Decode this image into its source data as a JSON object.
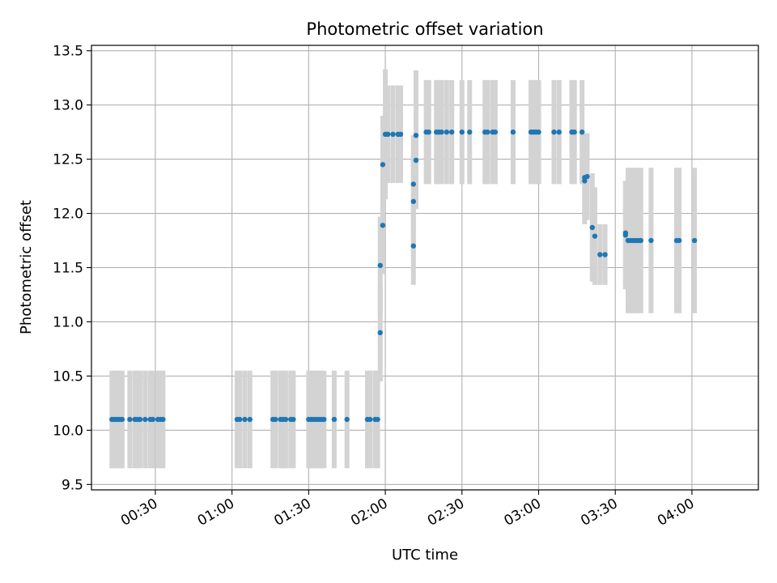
{
  "chart_data": {
    "type": "scatter",
    "title": "Photometric offset variation",
    "xlabel": "UTC time",
    "ylabel": "Photometric offset",
    "x_unit": "UTC time (HH:MM)",
    "xlim": [
      "00:05",
      "04:26"
    ],
    "ylim": [
      9.45,
      13.55
    ],
    "xticks": [
      "00:30",
      "01:00",
      "01:30",
      "02:00",
      "02:30",
      "03:00",
      "03:30",
      "04:00"
    ],
    "yticks": [
      "9.5",
      "10.0",
      "10.5",
      "11.0",
      "11.5",
      "12.0",
      "12.5",
      "13.0",
      "13.5"
    ],
    "grid": true,
    "colors": {
      "points": "#1f77b4",
      "errorbars": "#d3d3d3",
      "grid": "#b0b0b0"
    },
    "series": [
      {
        "x": [
          "00:13",
          "00:14",
          "00:15",
          "00:16",
          "00:17",
          "00:20",
          "00:22",
          "00:23",
          "00:24",
          "00:26",
          "00:28",
          "00:29",
          "00:31",
          "00:32",
          "00:33",
          "01:02",
          "01:03",
          "01:05",
          "01:07",
          "01:16",
          "01:17",
          "01:19",
          "01:20",
          "01:21",
          "01:23",
          "01:24",
          "01:30",
          "01:31",
          "01:32",
          "01:33",
          "01:34",
          "01:35",
          "01:36",
          "01:40",
          "01:45",
          "01:53",
          "01:54",
          "01:56",
          "01:57",
          "01:58",
          "01:58",
          "01:59",
          "01:59",
          "02:00",
          "02:01",
          "02:03",
          "02:05",
          "02:06",
          "02:11",
          "02:11",
          "02:11",
          "02:12",
          "02:12",
          "02:16",
          "02:17",
          "02:20",
          "02:21",
          "02:22",
          "02:24",
          "02:26",
          "02:30",
          "02:33",
          "02:39",
          "02:40",
          "02:42",
          "02:43",
          "02:50",
          "02:57",
          "02:58",
          "02:59",
          "03:00",
          "03:06",
          "03:08",
          "03:13",
          "03:14",
          "03:17",
          "03:18",
          "03:18",
          "03:19",
          "03:21",
          "03:22",
          "03:24",
          "03:26",
          "03:34",
          "03:34",
          "03:35",
          "03:36",
          "03:37",
          "03:38",
          "03:39",
          "03:40",
          "03:44",
          "03:54",
          "03:55",
          "04:01"
        ],
        "y": [
          10.1,
          10.1,
          10.1,
          10.1,
          10.1,
          10.1,
          10.1,
          10.1,
          10.1,
          10.1,
          10.1,
          10.1,
          10.1,
          10.1,
          10.1,
          10.1,
          10.1,
          10.1,
          10.1,
          10.1,
          10.1,
          10.1,
          10.1,
          10.1,
          10.1,
          10.1,
          10.1,
          10.1,
          10.1,
          10.1,
          10.1,
          10.1,
          10.1,
          10.1,
          10.1,
          10.1,
          10.1,
          10.1,
          10.1,
          10.9,
          11.52,
          11.89,
          12.45,
          12.73,
          12.73,
          12.73,
          12.73,
          12.73,
          11.7,
          12.11,
          12.27,
          12.49,
          12.72,
          12.75,
          12.75,
          12.75,
          12.75,
          12.75,
          12.75,
          12.75,
          12.75,
          12.75,
          12.75,
          12.75,
          12.75,
          12.75,
          12.75,
          12.75,
          12.75,
          12.75,
          12.75,
          12.75,
          12.75,
          12.75,
          12.75,
          12.75,
          12.3,
          12.33,
          12.34,
          11.87,
          11.79,
          11.62,
          11.62,
          11.82,
          11.8,
          11.75,
          11.75,
          11.75,
          11.75,
          11.75,
          11.75,
          11.75,
          11.75,
          11.75,
          11.75
        ],
        "error": [
          0.45,
          0.45,
          0.45,
          0.45,
          0.45,
          0.45,
          0.45,
          0.45,
          0.45,
          0.45,
          0.45,
          0.45,
          0.45,
          0.45,
          0.45,
          0.45,
          0.45,
          0.45,
          0.45,
          0.45,
          0.45,
          0.45,
          0.45,
          0.45,
          0.45,
          0.45,
          0.45,
          0.45,
          0.45,
          0.45,
          0.45,
          0.45,
          0.45,
          0.45,
          0.45,
          0.45,
          0.45,
          0.45,
          0.45,
          0.45,
          0.45,
          0.45,
          0.45,
          0.6,
          0.45,
          0.45,
          0.45,
          0.45,
          0.36,
          0.45,
          0.45,
          0.45,
          0.6,
          0.48,
          0.48,
          0.48,
          0.48,
          0.48,
          0.48,
          0.48,
          0.48,
          0.48,
          0.48,
          0.48,
          0.48,
          0.48,
          0.48,
          0.48,
          0.48,
          0.48,
          0.48,
          0.48,
          0.48,
          0.48,
          0.48,
          0.48,
          0.4,
          0.4,
          0.4,
          0.5,
          0.45,
          0.28,
          0.28,
          0.48,
          0.5,
          0.67,
          0.67,
          0.67,
          0.67,
          0.67,
          0.67,
          0.67,
          0.67,
          0.67,
          0.67
        ]
      }
    ]
  }
}
